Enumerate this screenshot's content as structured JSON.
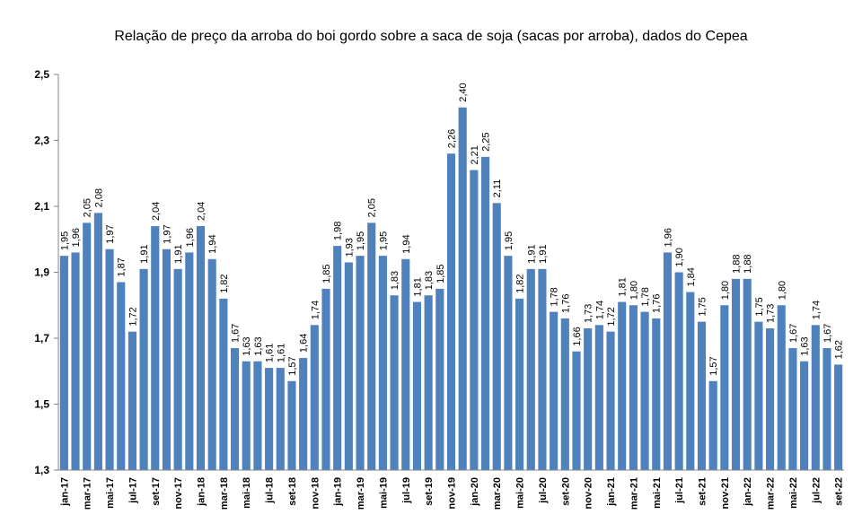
{
  "chart_data": {
    "type": "bar",
    "title": "Relação de preço da arroba do boi gordo sobre a saca de soja (sacas por arroba), dados do Cepea",
    "xlabel": "",
    "ylabel": "",
    "ylim": [
      1.3,
      2.5
    ],
    "yticks": [
      "1,3",
      "1,5",
      "1,7",
      "1,9",
      "2,1",
      "2,3",
      "2,5"
    ],
    "ytick_values": [
      1.3,
      1.5,
      1.7,
      1.9,
      2.1,
      2.3,
      2.5
    ],
    "grid": false,
    "legend": "none",
    "bar_color": "#4f81bd",
    "categories": [
      "jan-17",
      "fev-17",
      "mar-17",
      "abr-17",
      "mai-17",
      "jun-17",
      "jul-17",
      "ago-17",
      "set-17",
      "out-17",
      "nov-17",
      "dez-17",
      "jan-18",
      "fev-18",
      "mar-18",
      "abr-18",
      "mai-18",
      "jun-18",
      "jul-18",
      "ago-18",
      "set-18",
      "out-18",
      "nov-18",
      "dez-18",
      "jan-19",
      "fev-19",
      "mar-19",
      "abr-19",
      "mai-19",
      "jun-19",
      "jul-19",
      "ago-19",
      "set-19",
      "out-19",
      "nov-19",
      "dez-19",
      "jan-20",
      "fev-20",
      "mar-20",
      "abr-20",
      "mai-20",
      "jun-20",
      "jul-20",
      "ago-20",
      "set-20",
      "out-20",
      "nov-20",
      "dez-20",
      "jan-21",
      "fev-21",
      "mar-21",
      "abr-21",
      "mai-21",
      "jun-21",
      "jul-21",
      "ago-21",
      "set-21",
      "out-21",
      "nov-21",
      "dez-21",
      "jan-22",
      "fev-22",
      "mar-22",
      "abr-22",
      "mai-22",
      "jun-22",
      "jul-22",
      "ago-22",
      "set-22"
    ],
    "shown_tick_every": 2,
    "values": [
      1.95,
      1.96,
      2.05,
      2.08,
      1.97,
      1.87,
      1.72,
      1.91,
      2.04,
      1.97,
      1.91,
      1.96,
      2.04,
      1.94,
      1.82,
      1.67,
      1.63,
      1.63,
      1.61,
      1.61,
      1.57,
      1.64,
      1.74,
      1.85,
      1.98,
      1.93,
      1.95,
      2.05,
      1.95,
      1.83,
      1.94,
      1.81,
      1.83,
      1.85,
      2.26,
      2.4,
      2.21,
      2.25,
      2.11,
      1.95,
      1.82,
      1.91,
      1.91,
      1.78,
      1.76,
      1.66,
      1.73,
      1.74,
      1.72,
      1.81,
      1.8,
      1.78,
      1.76,
      1.96,
      1.9,
      1.84,
      1.75,
      1.57,
      1.8,
      1.88,
      1.88,
      1.75,
      1.73,
      1.8,
      1.67,
      1.63,
      1.74,
      1.67,
      1.62
    ],
    "data_labels": [
      "1,95",
      "1,96",
      "2,05",
      "2,08",
      "1,97",
      "1,87",
      "1,72",
      "1,91",
      "2,04",
      "1,97",
      "1,91",
      "1,96",
      "2,04",
      "1,94",
      "1,82",
      "1,67",
      "1,63",
      "1,63",
      "1,61",
      "1,61",
      "1,57",
      "1,64",
      "1,74",
      "1,85",
      "1,98",
      "1,93",
      "1,95",
      "2,05",
      "1,95",
      "1,83",
      "1,94",
      "1,81",
      "1,83",
      "1,85",
      "2,26",
      "2,40",
      "2,21",
      "2,25",
      "2,11",
      "1,95",
      "1,82",
      "1,91",
      "1,91",
      "1,78",
      "1,76",
      "1,66",
      "1,73",
      "1,74",
      "1,72",
      "1,81",
      "1,80",
      "1,78",
      "1,76",
      "1,96",
      "1,90",
      "1,84",
      "1,75",
      "1,57",
      "1,80",
      "1,88",
      "1,88",
      "1,75",
      "1,73",
      "1,80",
      "1,67",
      "1,63",
      "1,74",
      "1,67",
      "1,62"
    ]
  }
}
